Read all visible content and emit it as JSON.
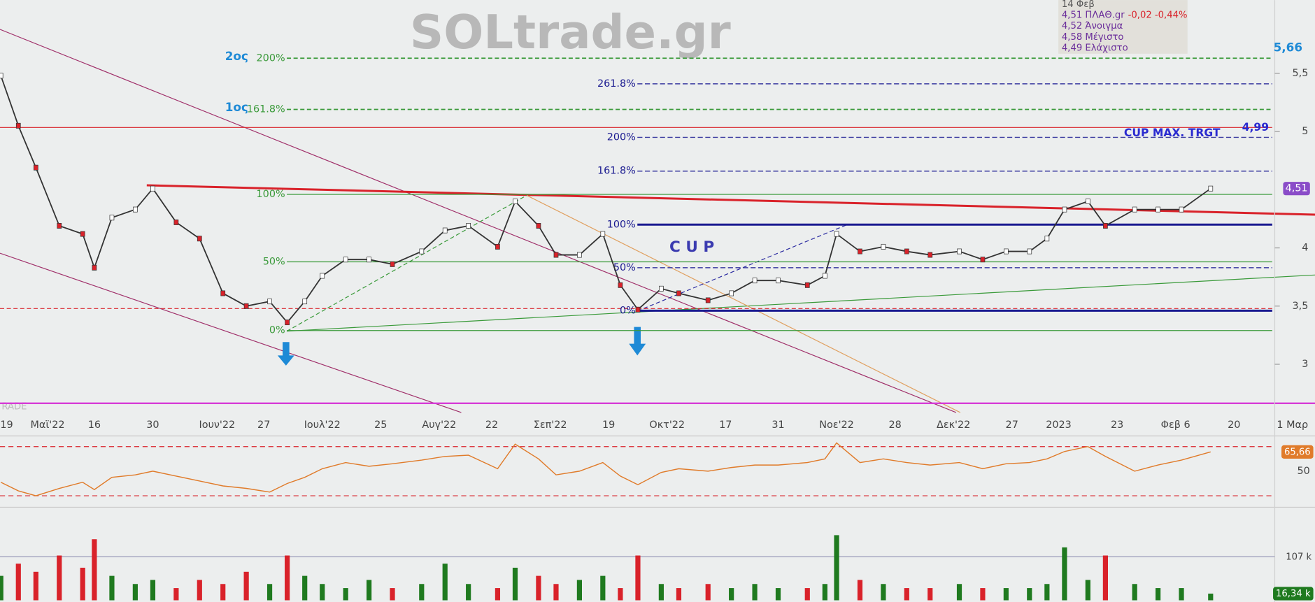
{
  "chart_data": [
    {
      "type": "price",
      "watermark": "SOLtrade.gr",
      "footer_mark": "RADE",
      "color": "#333333",
      "xlim": [
        0,
        225
      ],
      "ylim": [
        2.6,
        6.13
      ],
      "xticks": [
        {
          "value": 1,
          "label": "19"
        },
        {
          "value": 8,
          "label": "Μαϊ'22"
        },
        {
          "value": 16,
          "label": "16"
        },
        {
          "value": 26,
          "label": "30"
        },
        {
          "value": 37,
          "label": "Ιουν'22"
        },
        {
          "value": 45,
          "label": "27"
        },
        {
          "value": 55,
          "label": "Ιουλ'22"
        },
        {
          "value": 65,
          "label": "25"
        },
        {
          "value": 75,
          "label": "Αυγ'22"
        },
        {
          "value": 84,
          "label": "22"
        },
        {
          "value": 94,
          "label": "Σεπ'22"
        },
        {
          "value": 104,
          "label": "19"
        },
        {
          "value": 114,
          "label": "Οκτ'22"
        },
        {
          "value": 124,
          "label": "17"
        },
        {
          "value": 133,
          "label": "31"
        },
        {
          "value": 143,
          "label": "Νοε'22"
        },
        {
          "value": 153,
          "label": "28"
        },
        {
          "value": 163,
          "label": "Δεκ'22"
        },
        {
          "value": 173,
          "label": "27"
        },
        {
          "value": 181,
          "label": "2023"
        },
        {
          "value": 191,
          "label": "23"
        },
        {
          "value": 201,
          "label": "Φεβ 6"
        },
        {
          "value": 211,
          "label": "20"
        },
        {
          "value": 221,
          "label": "1 Μαρ"
        }
      ],
      "yticks": [
        3,
        {
          "value": 3.5,
          "label": "3,5"
        },
        4,
        5,
        {
          "value": 5.5,
          "label": "5,5"
        }
      ],
      "x": [
        0,
        3,
        6,
        10,
        14,
        16,
        19,
        23,
        26,
        30,
        34,
        38,
        42,
        46,
        49,
        52,
        55,
        59,
        63,
        67,
        72,
        76,
        80,
        85,
        88,
        92,
        95,
        99,
        103,
        106,
        109,
        113,
        116,
        121,
        125,
        129,
        133,
        138,
        141,
        143,
        147,
        151,
        155,
        159,
        164,
        168,
        172,
        176,
        179,
        182,
        186,
        189,
        194,
        198,
        202,
        207
      ],
      "values": [
        5.48,
        5.05,
        4.69,
        4.19,
        4.12,
        3.83,
        4.26,
        4.33,
        4.51,
        4.22,
        4.08,
        3.61,
        3.5,
        3.54,
        3.36,
        3.54,
        3.76,
        3.9,
        3.9,
        3.86,
        3.97,
        4.15,
        4.19,
        4.01,
        4.4,
        4.19,
        3.94,
        3.94,
        4.12,
        3.68,
        3.47,
        3.65,
        3.61,
        3.55,
        3.61,
        3.72,
        3.72,
        3.68,
        3.76,
        4.12,
        3.97,
        4.01,
        3.97,
        3.94,
        3.97,
        3.9,
        3.97,
        3.97,
        4.08,
        4.33,
        4.4,
        4.19,
        4.33,
        4.33,
        4.33,
        4.51
      ],
      "last_value": {
        "value": 4.51,
        "label": "4,51"
      },
      "fib_left": [
        {
          "label": "0%",
          "value": 3.29
        },
        {
          "label": "50%",
          "value": 3.88
        },
        {
          "label": "100%",
          "value": 4.46
        },
        {
          "label": "161.8%",
          "value": 5.19,
          "tag": "1ος"
        },
        {
          "label": "200%",
          "value": 5.63,
          "tag": "2ος"
        }
      ],
      "fib_right": [
        {
          "label": "0%",
          "value": 3.46
        },
        {
          "label": "50%",
          "value": 3.83
        },
        {
          "label": "100%",
          "value": 4.2
        },
        {
          "label": "161.8%",
          "value": 4.66
        },
        {
          "label": "200%",
          "value": 4.95
        },
        {
          "label": "261.8%",
          "value": 5.41
        }
      ],
      "target": {
        "label": "CUP MAX. TRGT",
        "price": {
          "value": 4.99,
          "label": "4,99"
        }
      },
      "top_target": {
        "value": 5.66,
        "label": "5,66"
      },
      "pattern_label": "C U P",
      "info": {
        "date": "14 Φεβ",
        "close": "4,51 ΠΛΑΘ.gr",
        "change": "-0,02 -0,44%",
        "lines": [
          "4,52 Άνοιγμα",
          "4,58 Μέγιστο",
          "4,49 Ελάχιστο"
        ]
      }
    },
    {
      "type": "rsi",
      "color": "#e07b2a",
      "ylim": [
        20,
        80
      ],
      "yticks": [
        50
      ],
      "bands": [
        30,
        70
      ],
      "values": [
        41,
        34,
        30,
        36,
        41,
        35,
        45,
        47,
        50,
        46,
        42,
        38,
        36,
        33,
        40,
        45,
        52,
        57,
        54,
        56,
        59,
        62,
        63,
        52,
        72,
        60,
        47,
        50,
        57,
        46,
        39,
        49,
        52,
        50,
        53,
        55,
        55,
        57,
        60,
        73,
        57,
        60,
        57,
        55,
        57,
        52,
        56,
        57,
        60,
        66,
        70,
        62,
        50,
        55,
        59,
        65.66
      ],
      "last_value": {
        "value": 65.66,
        "label": "65,66"
      }
    },
    {
      "type": "volume",
      "up_color": "#1f7a1f",
      "down_color": "#d9222a",
      "ylim": [
        0,
        206
      ],
      "reference": {
        "value": 107,
        "label": "107 k"
      },
      "values": [
        60,
        90,
        70,
        110,
        80,
        150,
        60,
        40,
        50,
        30,
        50,
        40,
        70,
        40,
        110,
        60,
        40,
        30,
        50,
        30,
        40,
        90,
        40,
        30,
        80,
        60,
        40,
        50,
        60,
        30,
        110,
        40,
        30,
        40,
        30,
        40,
        30,
        30,
        40,
        160,
        50,
        40,
        30,
        30,
        40,
        30,
        30,
        30,
        40,
        130,
        50,
        110,
        40,
        30,
        30,
        16.34
      ],
      "last_value": {
        "value": 16.34,
        "label": "16,34 k"
      }
    }
  ]
}
